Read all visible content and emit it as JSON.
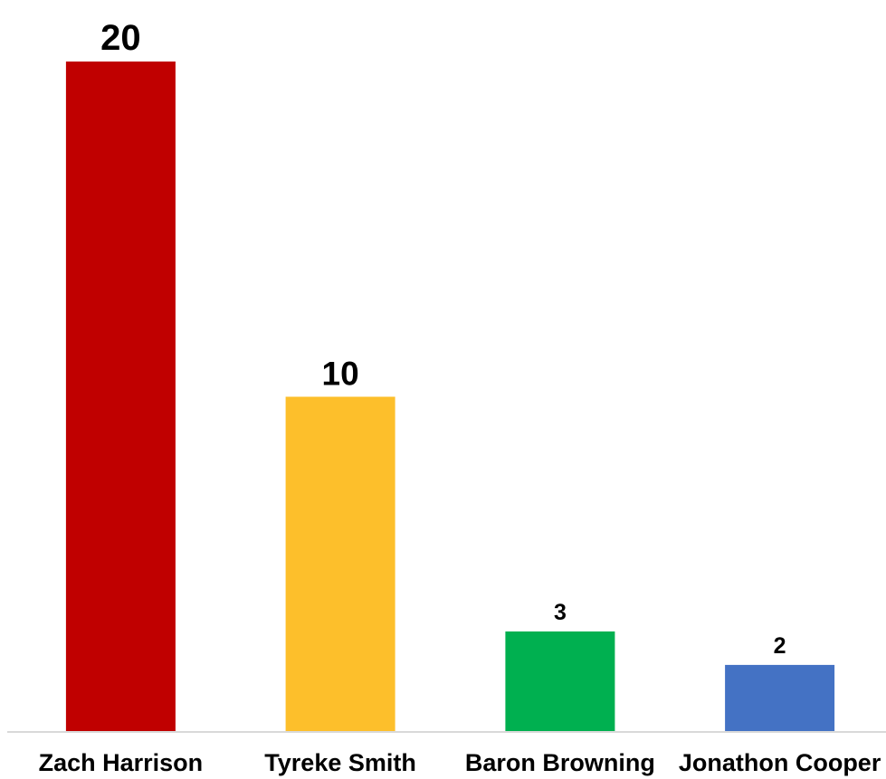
{
  "chart_data": {
    "type": "bar",
    "categories": [
      "Zach Harrison",
      "Tyreke Smith",
      "Baron Browning",
      "Jonathon Cooper"
    ],
    "values": [
      20,
      10,
      3,
      2
    ],
    "value_labels": [
      "20",
      "10",
      "3",
      "2"
    ],
    "colors": [
      "#c00000",
      "#fdbf2b",
      "#00b050",
      "#4472c4"
    ],
    "title": "",
    "xlabel": "",
    "ylabel": "",
    "ylim": [
      0,
      20
    ],
    "grid": false,
    "legend": "none"
  }
}
